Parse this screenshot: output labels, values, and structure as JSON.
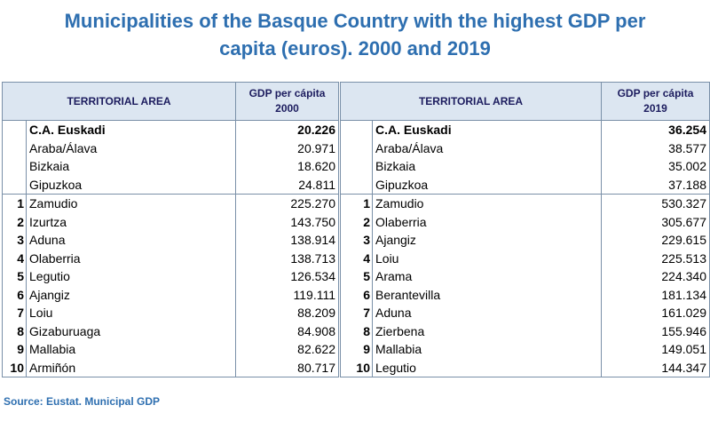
{
  "title_line1": "Municipalities of the Basque Country with the highest GDP per",
  "title_line2": "capita (euros). 2000 and 2019",
  "left": {
    "header_area": "TERRITORIAL AREA",
    "header_value_line1": "GDP per cápita",
    "header_value_line2": "2000",
    "rows": [
      {
        "rank": "",
        "name": "C.A. Euskadi",
        "value": "20.226"
      },
      {
        "rank": "",
        "name": "Araba/Álava",
        "value": "20.971"
      },
      {
        "rank": "",
        "name": "Bizkaia",
        "value": "18.620"
      },
      {
        "rank": "",
        "name": "Gipuzkoa",
        "value": "24.811"
      },
      {
        "rank": "1",
        "name": "Zamudio",
        "value": "225.270"
      },
      {
        "rank": "2",
        "name": "Izurtza",
        "value": "143.750"
      },
      {
        "rank": "3",
        "name": "Aduna",
        "value": "138.914"
      },
      {
        "rank": "4",
        "name": "Olaberria",
        "value": "138.713"
      },
      {
        "rank": "5",
        "name": "Legutio",
        "value": "126.534"
      },
      {
        "rank": "6",
        "name": "Ajangiz",
        "value": "119.111"
      },
      {
        "rank": "7",
        "name": "Loiu",
        "value": "88.209"
      },
      {
        "rank": "8",
        "name": "Gizaburuaga",
        "value": "84.908"
      },
      {
        "rank": "9",
        "name": "Mallabia",
        "value": "82.622"
      },
      {
        "rank": "10",
        "name": "Armiñón",
        "value": "80.717"
      }
    ]
  },
  "right": {
    "header_area": "TERRITORIAL AREA",
    "header_value_line1": "GDP per cápita",
    "header_value_line2": "2019",
    "rows": [
      {
        "rank": "",
        "name": "C.A. Euskadi",
        "value": "36.254"
      },
      {
        "rank": "",
        "name": "Araba/Álava",
        "value": "38.577"
      },
      {
        "rank": "",
        "name": "Bizkaia",
        "value": "35.002"
      },
      {
        "rank": "",
        "name": "Gipuzkoa",
        "value": "37.188"
      },
      {
        "rank": "1",
        "name": "Zamudio",
        "value": "530.327"
      },
      {
        "rank": "2",
        "name": "Olaberria",
        "value": "305.677"
      },
      {
        "rank": "3",
        "name": "Ajangiz",
        "value": "229.615"
      },
      {
        "rank": "4",
        "name": "Loiu",
        "value": "225.513"
      },
      {
        "rank": "5",
        "name": "Arama",
        "value": "224.340"
      },
      {
        "rank": "6",
        "name": "Berantevilla",
        "value": "181.134"
      },
      {
        "rank": "7",
        "name": "Aduna",
        "value": "161.029"
      },
      {
        "rank": "8",
        "name": "Zierbena",
        "value": "155.946"
      },
      {
        "rank": "9",
        "name": "Mallabia",
        "value": "149.051"
      },
      {
        "rank": "10",
        "name": "Legutio",
        "value": "144.347"
      }
    ]
  },
  "source": "Source: Eustat. Municipal GDP"
}
